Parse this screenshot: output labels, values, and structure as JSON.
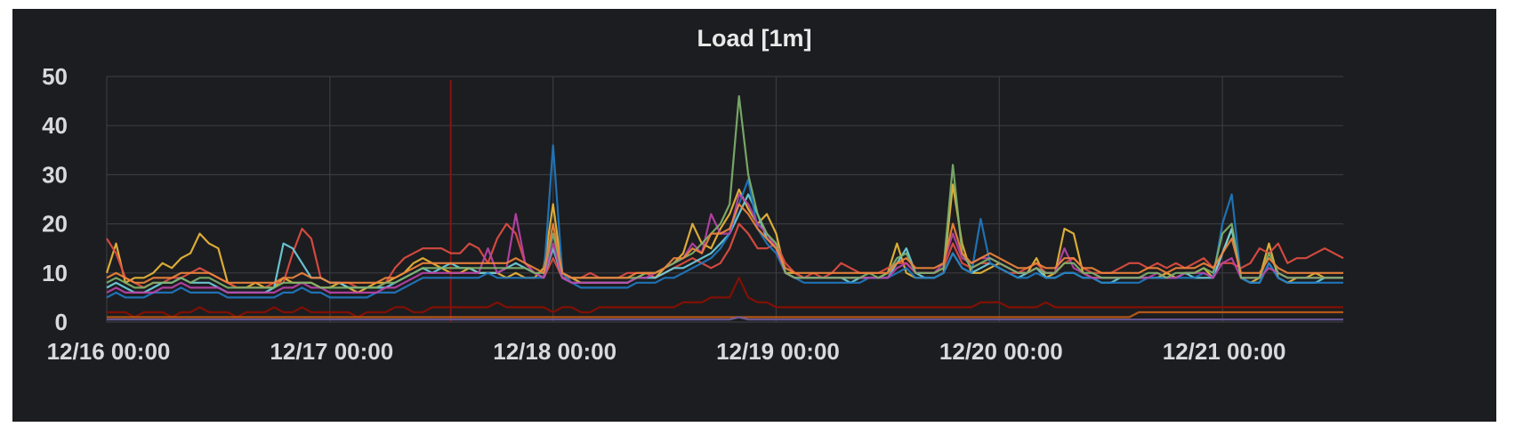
{
  "chart_data": {
    "type": "line",
    "title": "Load [1m]",
    "xlabel": "",
    "ylabel": "",
    "ylim": [
      0,
      50
    ],
    "yticks": [
      "0",
      "10",
      "20",
      "30",
      "40",
      "50"
    ],
    "xlim": [
      0,
      133
    ],
    "x_unit": "hours since 12/16 00:00",
    "xticks": [
      {
        "label": "12/16 00:00",
        "value": 0
      },
      {
        "label": "12/17 00:00",
        "value": 24
      },
      {
        "label": "12/18 00:00",
        "value": 48
      },
      {
        "label": "12/19 00:00",
        "value": 72
      },
      {
        "label": "12/20 00:00",
        "value": 96
      },
      {
        "label": "12/21 00:00",
        "value": 120
      }
    ],
    "grid": true,
    "legend": "none",
    "marker_line": {
      "x": 37,
      "color": "#8a1212"
    },
    "series": [
      {
        "color": "#eab839",
        "values": [
          10,
          16,
          8,
          9,
          9,
          10,
          12,
          11,
          13,
          14,
          18,
          16,
          15,
          8,
          7,
          7,
          8,
          7,
          7,
          9,
          8,
          8,
          8,
          7,
          7,
          8,
          7,
          6,
          7,
          8,
          8,
          9,
          10,
          12,
          13,
          12,
          11,
          10,
          10,
          11,
          10,
          10,
          10,
          9,
          10,
          9,
          9,
          11,
          24,
          10,
          9,
          8,
          8,
          8,
          8,
          8,
          8,
          9,
          10,
          9,
          11,
          12,
          14,
          20,
          16,
          15,
          19,
          22,
          27,
          23,
          20,
          22,
          18,
          10,
          10,
          9,
          9,
          9,
          9,
          9,
          9,
          9,
          9,
          9,
          10,
          16,
          10,
          9,
          9,
          9,
          10,
          28,
          16,
          10,
          10,
          11,
          12,
          11,
          10,
          10,
          13,
          9,
          10,
          19,
          18,
          10,
          9,
          9,
          9,
          9,
          9,
          9,
          9,
          9,
          10,
          9,
          10,
          10,
          11,
          9,
          14,
          19,
          9,
          8,
          9,
          16,
          9,
          8,
          9,
          9,
          10,
          9,
          9,
          9
        ]
      },
      {
        "color": "#e24d42",
        "values": [
          17,
          14,
          9,
          8,
          7,
          8,
          8,
          9,
          9,
          10,
          11,
          10,
          9,
          8,
          7,
          7,
          7,
          7,
          8,
          8,
          14,
          19,
          17,
          9,
          8,
          8,
          8,
          7,
          7,
          7,
          8,
          11,
          13,
          14,
          15,
          15,
          15,
          14,
          14,
          16,
          15,
          12,
          17,
          20,
          18,
          12,
          10,
          9,
          13,
          9,
          9,
          9,
          10,
          9,
          9,
          9,
          10,
          10,
          10,
          9,
          10,
          11,
          12,
          13,
          12,
          11,
          12,
          15,
          20,
          18,
          15,
          15,
          16,
          12,
          10,
          9,
          10,
          9,
          10,
          12,
          11,
          10,
          10,
          10,
          11,
          12,
          12,
          10,
          10,
          10,
          11,
          16,
          12,
          11,
          12,
          12,
          11,
          10,
          10,
          11,
          12,
          10,
          10,
          12,
          13,
          11,
          10,
          10,
          10,
          11,
          12,
          12,
          11,
          12,
          11,
          12,
          11,
          12,
          13,
          11,
          12,
          12,
          11,
          12,
          15,
          14,
          16,
          12,
          13,
          13,
          14,
          15,
          14,
          13
        ]
      },
      {
        "color": "#6ed0e0",
        "values": [
          7,
          8,
          7,
          6,
          6,
          7,
          8,
          8,
          9,
          8,
          8,
          8,
          7,
          6,
          6,
          6,
          6,
          6,
          7,
          16,
          15,
          12,
          9,
          9,
          8,
          8,
          7,
          7,
          7,
          7,
          7,
          8,
          9,
          10,
          11,
          10,
          11,
          12,
          11,
          11,
          10,
          10,
          10,
          11,
          12,
          11,
          10,
          9,
          15,
          9,
          8,
          8,
          8,
          8,
          8,
          8,
          8,
          9,
          9,
          9,
          10,
          11,
          11,
          12,
          13,
          14,
          16,
          18,
          22,
          26,
          22,
          17,
          15,
          10,
          9,
          9,
          9,
          9,
          9,
          9,
          8,
          9,
          9,
          9,
          9,
          12,
          15,
          10,
          9,
          9,
          10,
          14,
          11,
          10,
          11,
          12,
          11,
          10,
          9,
          10,
          11,
          9,
          9,
          10,
          10,
          9,
          9,
          8,
          8,
          9,
          9,
          9,
          9,
          9,
          9,
          9,
          10,
          9,
          9,
          9,
          14,
          19,
          9,
          8,
          8,
          12,
          9,
          8,
          8,
          8,
          8,
          9,
          9,
          9
        ]
      },
      {
        "color": "#1f78c1",
        "values": [
          5,
          6,
          5,
          5,
          5,
          6,
          6,
          6,
          7,
          6,
          6,
          6,
          6,
          5,
          5,
          5,
          5,
          5,
          5,
          6,
          6,
          7,
          6,
          6,
          5,
          5,
          5,
          5,
          5,
          6,
          6,
          6,
          7,
          8,
          9,
          9,
          9,
          9,
          9,
          9,
          9,
          10,
          9,
          9,
          9,
          9,
          9,
          9,
          36,
          10,
          8,
          7,
          7,
          7,
          7,
          7,
          7,
          8,
          8,
          8,
          9,
          9,
          10,
          11,
          12,
          13,
          15,
          18,
          24,
          29,
          19,
          16,
          14,
          10,
          9,
          8,
          8,
          8,
          8,
          8,
          8,
          8,
          9,
          9,
          9,
          10,
          11,
          9,
          9,
          9,
          10,
          14,
          11,
          10,
          21,
          12,
          11,
          10,
          9,
          9,
          10,
          9,
          9,
          10,
          10,
          9,
          9,
          8,
          8,
          8,
          8,
          8,
          9,
          9,
          9,
          9,
          9,
          9,
          10,
          9,
          20,
          26,
          9,
          8,
          8,
          12,
          9,
          8,
          8,
          8,
          8,
          8,
          8,
          8
        ]
      },
      {
        "color": "#ba43a9",
        "values": [
          6,
          7,
          6,
          6,
          6,
          6,
          7,
          7,
          8,
          7,
          7,
          7,
          7,
          6,
          6,
          6,
          6,
          6,
          6,
          7,
          7,
          8,
          7,
          7,
          6,
          6,
          6,
          6,
          6,
          6,
          7,
          7,
          8,
          9,
          10,
          10,
          10,
          10,
          10,
          10,
          10,
          15,
          10,
          11,
          22,
          12,
          10,
          9,
          16,
          9,
          8,
          8,
          8,
          8,
          8,
          8,
          8,
          9,
          9,
          10,
          11,
          12,
          13,
          16,
          14,
          22,
          18,
          18,
          26,
          24,
          20,
          18,
          15,
          10,
          9,
          9,
          9,
          9,
          9,
          9,
          9,
          9,
          9,
          9,
          9,
          11,
          12,
          10,
          10,
          10,
          12,
          18,
          13,
          12,
          13,
          13,
          12,
          11,
          10,
          10,
          11,
          10,
          10,
          15,
          11,
          10,
          9,
          9,
          9,
          9,
          9,
          9,
          9,
          10,
          9,
          9,
          10,
          10,
          10,
          9,
          12,
          13,
          9,
          9,
          9,
          11,
          10,
          9,
          9,
          9,
          9,
          9,
          9,
          9
        ]
      },
      {
        "color": "#7eb26d",
        "values": [
          8,
          9,
          8,
          7,
          7,
          8,
          8,
          8,
          9,
          8,
          9,
          9,
          8,
          7,
          7,
          7,
          7,
          7,
          7,
          8,
          8,
          8,
          8,
          7,
          7,
          7,
          7,
          7,
          7,
          7,
          8,
          8,
          9,
          10,
          11,
          11,
          11,
          11,
          11,
          11,
          11,
          11,
          11,
          11,
          11,
          11,
          10,
          10,
          18,
          10,
          9,
          9,
          9,
          9,
          9,
          9,
          9,
          9,
          10,
          10,
          11,
          12,
          13,
          14,
          16,
          18,
          20,
          24,
          46,
          30,
          22,
          18,
          16,
          10,
          9,
          9,
          9,
          9,
          9,
          9,
          9,
          9,
          10,
          9,
          10,
          13,
          14,
          10,
          10,
          10,
          11,
          32,
          14,
          11,
          12,
          13,
          12,
          11,
          10,
          10,
          11,
          10,
          10,
          12,
          12,
          10,
          10,
          9,
          9,
          9,
          9,
          9,
          10,
          10,
          9,
          10,
          10,
          10,
          11,
          10,
          18,
          20,
          9,
          9,
          9,
          14,
          10,
          9,
          9,
          9,
          9,
          9,
          9,
          9
        ]
      },
      {
        "color": "#ef843c",
        "values": [
          9,
          10,
          9,
          8,
          8,
          9,
          9,
          9,
          10,
          10,
          10,
          10,
          9,
          8,
          8,
          8,
          8,
          8,
          8,
          9,
          9,
          10,
          9,
          9,
          8,
          8,
          8,
          8,
          8,
          8,
          9,
          9,
          10,
          11,
          12,
          12,
          12,
          12,
          12,
          12,
          12,
          12,
          12,
          12,
          13,
          12,
          11,
          10,
          20,
          10,
          9,
          9,
          9,
          9,
          9,
          9,
          9,
          10,
          10,
          10,
          11,
          13,
          13,
          15,
          14,
          18,
          18,
          19,
          24,
          22,
          19,
          17,
          15,
          11,
          10,
          10,
          10,
          10,
          10,
          10,
          10,
          10,
          10,
          10,
          10,
          12,
          13,
          11,
          11,
          11,
          12,
          20,
          14,
          12,
          13,
          14,
          13,
          12,
          11,
          11,
          12,
          11,
          11,
          13,
          13,
          11,
          11,
          10,
          10,
          10,
          10,
          10,
          11,
          11,
          10,
          11,
          11,
          11,
          12,
          11,
          14,
          17,
          10,
          10,
          10,
          13,
          11,
          10,
          10,
          10,
          10,
          10,
          10,
          10
        ]
      },
      {
        "color": "#890f02",
        "values": [
          2,
          2,
          2,
          1,
          2,
          2,
          2,
          1,
          2,
          2,
          3,
          2,
          2,
          2,
          1,
          2,
          2,
          2,
          3,
          2,
          2,
          3,
          2,
          2,
          2,
          2,
          2,
          1,
          2,
          2,
          2,
          3,
          3,
          2,
          2,
          3,
          3,
          3,
          3,
          3,
          3,
          3,
          4,
          3,
          3,
          3,
          3,
          3,
          2,
          3,
          3,
          2,
          2,
          3,
          3,
          3,
          3,
          3,
          3,
          3,
          3,
          3,
          4,
          4,
          4,
          5,
          5,
          5,
          9,
          5,
          4,
          4,
          3,
          3,
          3,
          3,
          3,
          3,
          3,
          3,
          3,
          3,
          3,
          3,
          3,
          3,
          3,
          3,
          3,
          3,
          3,
          3,
          3,
          3,
          4,
          4,
          4,
          3,
          3,
          3,
          3,
          4,
          3,
          3,
          3,
          3,
          3,
          3,
          3,
          3,
          3,
          3,
          3,
          3,
          3,
          3,
          3,
          3,
          3,
          3,
          3,
          3,
          3,
          3,
          3,
          3,
          3,
          3,
          3,
          3,
          3,
          3,
          3,
          3
        ]
      },
      {
        "color": "#c15c17",
        "values": [
          1,
          1,
          1,
          1,
          1,
          1,
          1,
          1,
          1,
          1,
          1,
          1,
          1,
          1,
          1,
          1,
          1,
          1,
          1,
          1,
          1,
          1,
          1,
          1,
          1,
          1,
          1,
          1,
          1,
          1,
          1,
          1,
          1,
          1,
          1,
          1,
          1,
          1,
          1,
          1,
          1,
          1,
          1,
          1,
          1,
          1,
          1,
          1,
          1,
          1,
          1,
          1,
          1,
          1,
          1,
          1,
          1,
          1,
          1,
          1,
          1,
          1,
          1,
          1,
          1,
          1,
          1,
          1,
          1,
          1,
          1,
          1,
          1,
          1,
          1,
          1,
          1,
          1,
          1,
          1,
          1,
          1,
          1,
          1,
          1,
          1,
          1,
          1,
          1,
          1,
          1,
          1,
          1,
          1,
          1,
          1,
          1,
          1,
          1,
          1,
          1,
          1,
          1,
          1,
          1,
          1,
          1,
          1,
          1,
          1,
          1,
          2,
          2,
          2,
          2,
          2,
          2,
          2,
          2,
          2,
          2,
          2,
          2,
          2,
          2,
          2,
          2,
          2,
          2,
          2,
          2,
          2,
          2,
          2
        ]
      },
      {
        "color": "#705da0",
        "values": [
          0.5,
          0.5,
          0.5,
          0.5,
          0.5,
          0.5,
          0.5,
          0.5,
          0.5,
          0.5,
          0.5,
          0.5,
          0.5,
          0.5,
          0.5,
          0.5,
          0.5,
          0.5,
          0.5,
          0.5,
          0.5,
          0.5,
          0.5,
          0.5,
          0.5,
          0.5,
          0.5,
          0.5,
          0.5,
          0.5,
          0.5,
          0.5,
          0.5,
          0.5,
          0.5,
          0.5,
          0.5,
          0.5,
          0.5,
          0.5,
          0.5,
          0.5,
          0.5,
          0.5,
          0.5,
          0.5,
          0.5,
          0.5,
          0.5,
          0.5,
          0.5,
          0.5,
          0.5,
          0.5,
          0.5,
          0.5,
          0.5,
          0.5,
          0.5,
          0.5,
          0.5,
          0.5,
          0.5,
          0.5,
          0.5,
          0.5,
          0.5,
          0.5,
          1,
          0.5,
          0.5,
          0.5,
          0.5,
          0.5,
          0.5,
          0.5,
          0.5,
          0.5,
          0.5,
          0.5,
          0.5,
          0.5,
          0.5,
          0.5,
          0.5,
          0.5,
          0.5,
          0.5,
          0.5,
          0.5,
          0.5,
          0.5,
          0.5,
          0.5,
          0.5,
          0.5,
          0.5,
          0.5,
          0.5,
          0.5,
          0.5,
          0.5,
          0.5,
          0.5,
          0.5,
          0.5,
          0.5,
          0.5,
          0.5,
          0.5,
          0.5,
          0.5,
          0.5,
          0.5,
          0.5,
          0.5,
          0.5,
          0.5,
          0.5,
          0.5,
          0.5,
          0.5,
          0.5,
          0.5,
          0.5,
          0.5,
          0.5,
          0.5,
          0.5,
          0.5,
          0.5,
          0.5,
          0.5,
          0.5
        ]
      }
    ]
  }
}
